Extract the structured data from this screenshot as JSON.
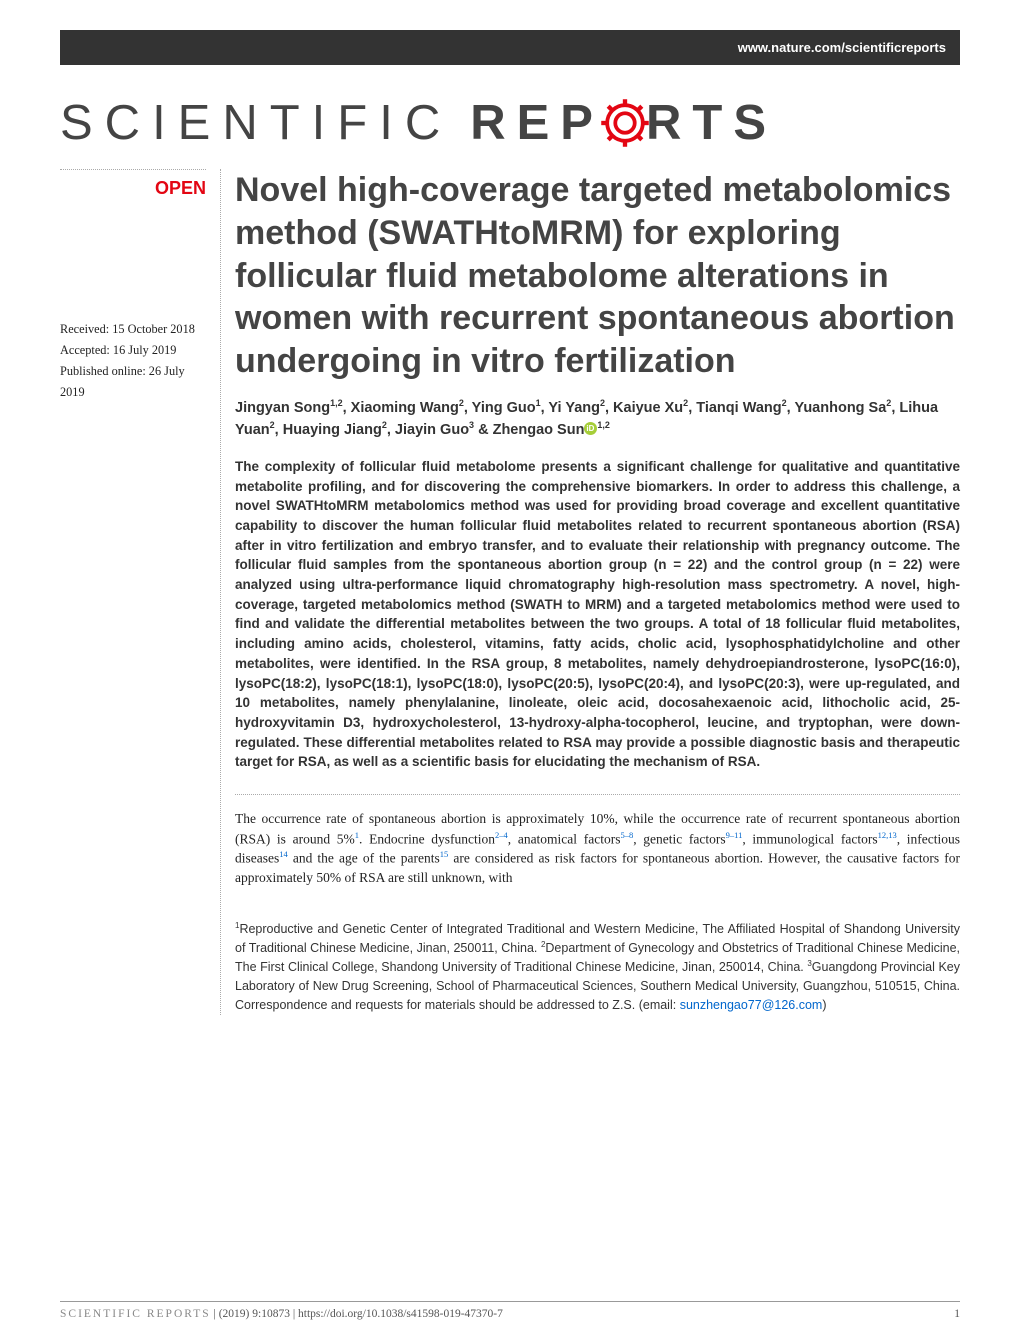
{
  "header": {
    "url": "www.nature.com/scientificreports"
  },
  "logo": {
    "part1": "SCIENTIFIC",
    "part2": "REP",
    "part3": "RTS"
  },
  "open_label": "OPEN",
  "dates": {
    "received": "Received: 15 October 2018",
    "accepted": "Accepted: 16 July 2019",
    "published": "Published online: 26 July 2019"
  },
  "title": "Novel high-coverage targeted metabolomics method (SWATHtoMRM) for exploring follicular fluid metabolome alterations in women with recurrent spontaneous abortion undergoing in vitro fertilization",
  "authors_html": "Jingyan Song<sup>1,2</sup>, Xiaoming Wang<sup>2</sup>, Ying Guo<sup>1</sup>, Yi Yang<sup>2</sup>, Kaiyue Xu<sup>2</sup>, Tianqi Wang<sup>2</sup>, Yuanhong Sa<sup>2</sup>, Lihua Yuan<sup>2</sup>, Huaying Jiang<sup>2</sup>, Jiayin Guo<sup>3</sup> & Zhengao Sun",
  "author_final_sup": "1,2",
  "abstract": "The complexity of follicular fluid metabolome presents a significant challenge for qualitative and quantitative metabolite profiling, and for discovering the comprehensive biomarkers. In order to address this challenge, a novel SWATHtoMRM metabolomics method was used for providing broad coverage and excellent quantitative capability to discover the human follicular fluid metabolites related to recurrent spontaneous abortion (RSA) after in vitro fertilization and embryo transfer, and to evaluate their relationship with pregnancy outcome. The follicular fluid samples from the spontaneous abortion group (n = 22) and the control group (n = 22) were analyzed using ultra-performance liquid chromatography high-resolution mass spectrometry. A novel, high-coverage, targeted metabolomics method (SWATH to MRM) and a targeted metabolomics method were used to find and validate the differential metabolites between the two groups. A total of 18 follicular fluid metabolites, including amino acids, cholesterol, vitamins, fatty acids, cholic acid, lysophosphatidylcholine and other metabolites, were identified. In the RSA group, 8 metabolites, namely dehydroepiandrosterone, lysoPC(16:0), lysoPC(18:2), lysoPC(18:1), lysoPC(18:0), lysoPC(20:5), lysoPC(20:4), and lysoPC(20:3), were up-regulated, and 10 metabolites, namely phenylalanine, linoleate, oleic acid, docosahexaenoic acid, lithocholic acid, 25-hydroxyvitamin D3, hydroxycholesterol, 13-hydroxy-alpha-tocopherol, leucine, and tryptophan, were down-regulated. These differential metabolites related to RSA may provide a possible diagnostic basis and therapeutic target for RSA, as well as a scientific basis for elucidating the mechanism of RSA.",
  "body_para": {
    "pre": "The occurrence rate of spontaneous abortion is approximately 10%, while the occurrence rate of recurrent spontaneous abortion (RSA) is around 5%",
    "ref1": "1",
    "mid1": ". Endocrine dysfunction",
    "ref2": "2–4",
    "mid2": ", anatomical factors",
    "ref3": "5–8",
    "mid3": ", genetic factors",
    "ref4": "9–11",
    "mid4": ", immunological factors",
    "ref5": "12,13",
    "mid5": ", infectious diseases",
    "ref6": "14",
    "mid6": " and the age of the parents",
    "ref7": "15",
    "post": " are considered as risk factors for spontaneous abortion. However, the causative factors for approximately 50% of RSA are still unknown, with"
  },
  "affiliations": {
    "text": "Reproductive and Genetic Center of Integrated Traditional and Western Medicine, The Affiliated Hospital of Shandong University of Traditional Chinese Medicine, Jinan, 250011, China. ",
    "aff2": "Department of Gynecology and Obstetrics of Traditional Chinese Medicine, The First Clinical College, Shandong University of Traditional Chinese Medicine, Jinan, 250014, China. ",
    "aff3": "Guangdong Provincial Key Laboratory of New Drug Screening, School of Pharmaceutical Sciences, Southern Medical University, Guangzhou, 510515, China. Correspondence and requests for materials should be addressed to Z.S. (email: ",
    "email": "sunzhengao77@126.com",
    "close": ")"
  },
  "footer": {
    "journal": "SCIENTIFIC REPORTS",
    "sep": " |         ",
    "citation": "(2019) 9:10873  | https://doi.org/10.1038/s41598-019-47370-7",
    "pageno": "1"
  },
  "colors": {
    "accent_red": "#e30613",
    "link_blue": "#0066cc",
    "header_bg": "#333333",
    "orcid_green": "#a6ce39"
  }
}
